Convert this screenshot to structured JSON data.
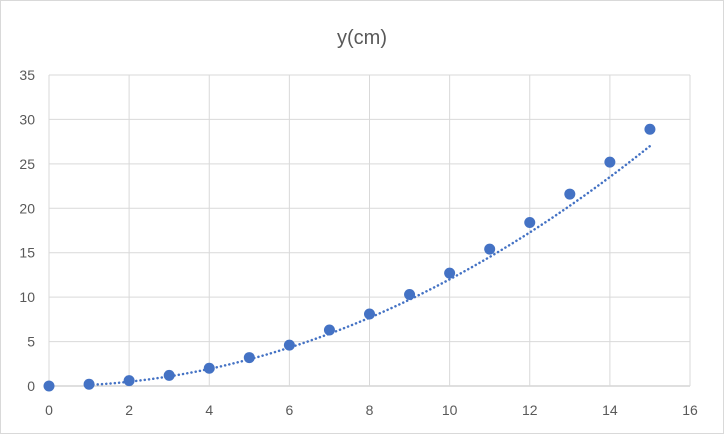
{
  "chart_data": {
    "type": "scatter",
    "title": "y(cm)",
    "xlabel": "",
    "ylabel": "",
    "xlim": [
      0,
      16
    ],
    "ylim": [
      0,
      35
    ],
    "xticks": [
      0,
      2,
      4,
      6,
      8,
      10,
      12,
      14,
      16
    ],
    "yticks": [
      0,
      5,
      10,
      15,
      20,
      25,
      30,
      35
    ],
    "grid": true,
    "legend": "none",
    "marker_color": "#4472c4",
    "trendline_color": "#4472c4",
    "series": [
      {
        "x": [
          0,
          1,
          2,
          3,
          4,
          5,
          6,
          7,
          8,
          9,
          10,
          11,
          12,
          13,
          14,
          15
        ],
        "y": [
          0,
          0.2,
          0.6,
          1.2,
          2.0,
          3.2,
          4.6,
          6.3,
          8.1,
          10.3,
          12.7,
          15.4,
          18.4,
          21.6,
          25.2,
          28.9
        ]
      }
    ],
    "trendline": {
      "style": "dotted",
      "type": "polynomial",
      "x_range": [
        1,
        15
      ],
      "coefficients": [
        0,
        0,
        0.12
      ]
    }
  }
}
